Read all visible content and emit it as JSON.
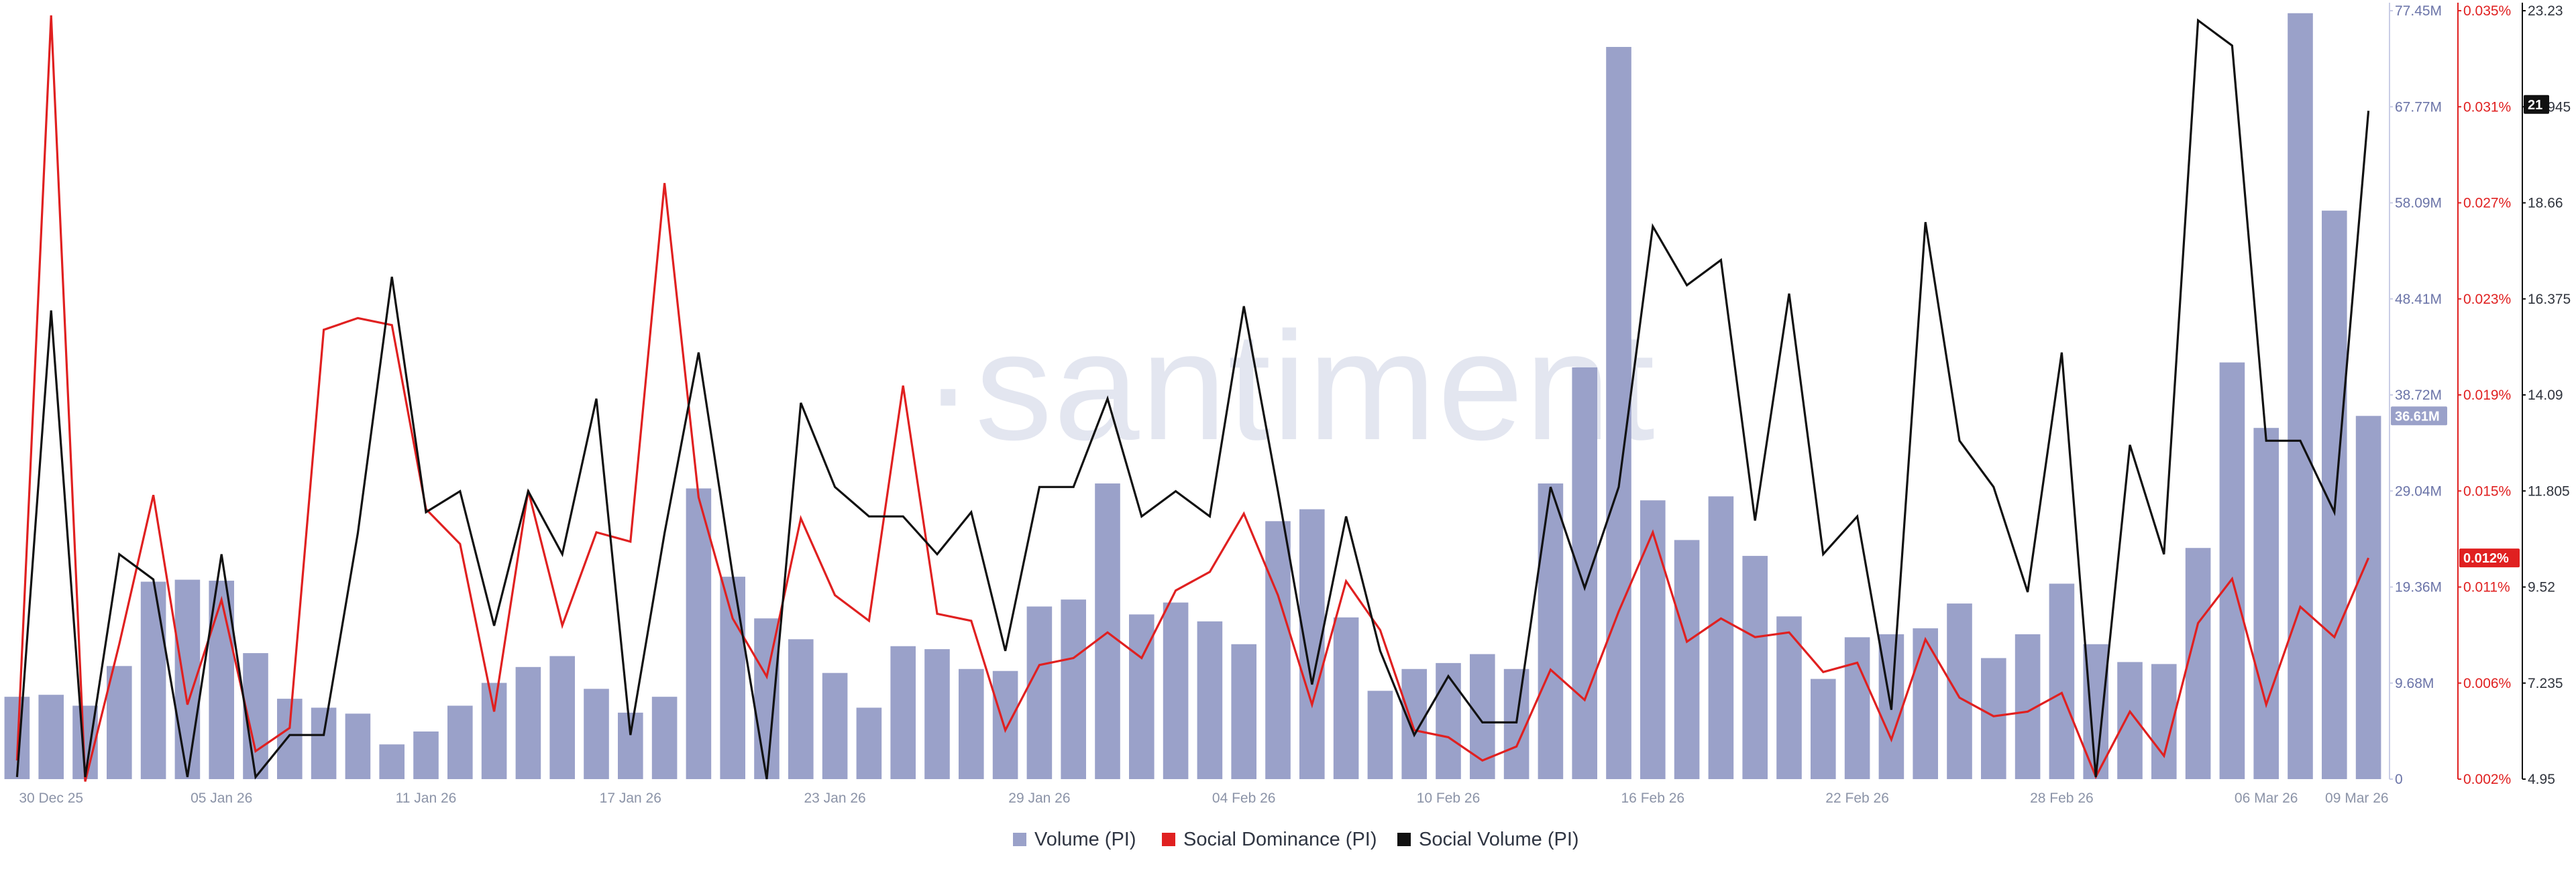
{
  "watermark": "·santiment",
  "chart_data": {
    "type": "bar",
    "grid": false,
    "legend_position": "bottom-center",
    "x_ticks": [
      "30 Dec 25",
      "05 Jan 26",
      "11 Jan 26",
      "17 Jan 26",
      "23 Jan 26",
      "29 Jan 26",
      "04 Feb 26",
      "10 Feb 26",
      "16 Feb 26",
      "22 Feb 26",
      "28 Feb 26",
      "06 Mar 26",
      "09 Mar 26"
    ],
    "x_tick_index": [
      1,
      6,
      12,
      18,
      24,
      30,
      36,
      42,
      48,
      54,
      60,
      66,
      69
    ],
    "n_points": 70,
    "axes": {
      "volume": {
        "ticks": [
          "77.45M",
          "67.77M",
          "58.09M",
          "48.41M",
          "38.72M",
          "29.04M",
          "19.36M",
          "9.68M",
          "0"
        ],
        "min": 0,
        "max": 77.45,
        "unit": "M",
        "color": "#6b74a8",
        "line_color": "#c9cde6"
      },
      "social_dominance": {
        "ticks": [
          "0.035%",
          "0.031%",
          "0.027%",
          "0.023%",
          "0.019%",
          "0.015%",
          "0.011%",
          "0.006%",
          "0.002%"
        ],
        "min": 0.002,
        "max": 0.035,
        "unit": "%",
        "color": "#e02020",
        "line_color": "#e02020"
      },
      "social_volume": {
        "ticks": [
          "23.23",
          "20.945",
          "18.66",
          "16.375",
          "14.09",
          "11.805",
          "9.52",
          "7.235",
          "4.95"
        ],
        "min": 4.95,
        "max": 23.23,
        "color": "#30343d",
        "line_color": "#111111"
      }
    },
    "current_labels": {
      "volume": {
        "text": "36.61M",
        "value": 36.61,
        "bg": "#9aa1c9",
        "fg": "#ffffff"
      },
      "social_dominance": {
        "text": "0.012%",
        "value": 0.0115,
        "bg": "#e02020",
        "fg": "#ffffff"
      },
      "social_volume": {
        "text": "21",
        "value": 21,
        "bg": "#111111",
        "fg": "#ffffff"
      }
    },
    "series": [
      {
        "name": "Volume (PI)",
        "type": "bar",
        "color": "#9aa1c9",
        "values": [
          8.3,
          8.5,
          7.4,
          11.4,
          19.9,
          20.1,
          20.0,
          12.7,
          8.1,
          7.2,
          6.6,
          3.5,
          4.8,
          7.4,
          9.7,
          11.3,
          12.4,
          9.1,
          6.7,
          8.3,
          29.3,
          20.4,
          16.2,
          14.1,
          10.7,
          7.2,
          13.4,
          13.1,
          11.1,
          10.9,
          17.4,
          18.1,
          29.8,
          16.6,
          17.8,
          15.9,
          13.6,
          26.0,
          27.2,
          16.3,
          8.9,
          11.1,
          11.7,
          12.6,
          11.1,
          29.8,
          41.5,
          73.8,
          28.1,
          24.1,
          28.5,
          22.5,
          16.4,
          10.1,
          14.3,
          14.6,
          15.2,
          17.7,
          12.2,
          14.6,
          19.7,
          13.6,
          11.8,
          11.6,
          23.3,
          42.0,
          35.4,
          77.2,
          57.3,
          36.61
        ]
      },
      {
        "name": "Social Dominance (PI)",
        "type": "line",
        "color": "#e02020",
        "values": [
          0.0028,
          0.0348,
          0.0019,
          0.0078,
          0.0142,
          0.0052,
          0.0097,
          0.0032,
          0.0042,
          0.0213,
          0.0218,
          0.0215,
          0.0136,
          0.0121,
          0.0049,
          0.0144,
          0.0086,
          0.0126,
          0.0122,
          0.0276,
          0.0141,
          0.0089,
          0.0064,
          0.0132,
          0.0099,
          0.0088,
          0.0189,
          0.0091,
          0.0088,
          0.0041,
          0.0069,
          0.0072,
          0.0083,
          0.0072,
          0.0101,
          0.0109,
          0.0134,
          0.0099,
          0.0052,
          0.0105,
          0.0084,
          0.0041,
          0.0038,
          0.0028,
          0.0034,
          0.0067,
          0.0054,
          0.0092,
          0.0126,
          0.0079,
          0.0089,
          0.0081,
          0.0083,
          0.0066,
          0.007,
          0.0037,
          0.008,
          0.0055,
          0.0047,
          0.0049,
          0.0057,
          0.0021,
          0.0049,
          0.003,
          0.0087,
          0.0106,
          0.0052,
          0.0094,
          0.0081,
          0.0115
        ]
      },
      {
        "name": "Social Volume (PI)",
        "type": "line",
        "color": "#111111",
        "values": [
          5.0,
          16.1,
          5.0,
          10.3,
          9.7,
          5.0,
          10.3,
          5.0,
          6.0,
          6.0,
          10.8,
          16.9,
          11.3,
          11.8,
          8.6,
          11.8,
          10.3,
          14.0,
          6.0,
          10.8,
          15.1,
          9.8,
          4.95,
          13.9,
          11.9,
          11.2,
          11.2,
          10.3,
          11.3,
          8.0,
          11.9,
          11.9,
          14.0,
          11.2,
          11.8,
          11.2,
          16.2,
          11.8,
          7.2,
          11.2,
          8.0,
          6.0,
          7.4,
          6.3,
          6.3,
          11.9,
          9.5,
          11.9,
          18.1,
          16.7,
          17.3,
          11.1,
          16.5,
          10.3,
          11.2,
          6.6,
          18.2,
          13.0,
          11.9,
          9.4,
          15.1,
          5.0,
          12.9,
          10.3,
          23.0,
          22.4,
          13.0,
          13.0,
          11.3,
          20.85
        ]
      }
    ]
  }
}
